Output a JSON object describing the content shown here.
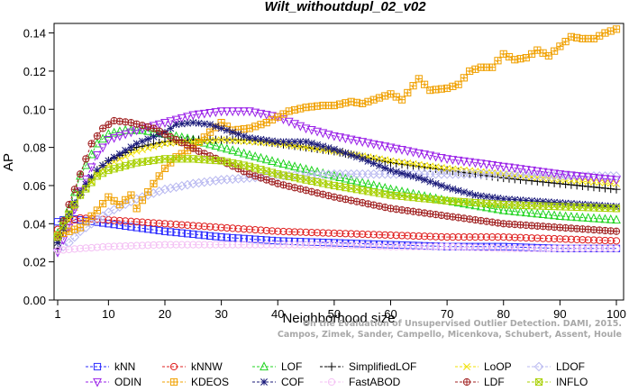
{
  "chart_data": {
    "type": "line",
    "title": "Wilt_withoutdupl_02_v02",
    "xlabel": "Neighborhood size",
    "ylabel": "AP",
    "xlim": [
      1,
      100
    ],
    "ylim": [
      0,
      0.145
    ],
    "xticks": [
      1,
      10,
      20,
      30,
      40,
      50,
      60,
      70,
      80,
      90,
      100
    ],
    "yticks": [
      0.0,
      0.02,
      0.04,
      0.06,
      0.08,
      0.1,
      0.12,
      0.14
    ],
    "ytick_labels": [
      "0.00",
      "0.02",
      "0.04",
      "0.06",
      "0.08",
      "0.10",
      "0.12",
      "0.14"
    ],
    "legend_position": "bottom",
    "grid": false,
    "series": [
      {
        "name": "kNN",
        "color": "#2a2aff",
        "marker": "square",
        "points": [
          [
            1,
            0.041
          ],
          [
            3,
            0.043
          ],
          [
            5,
            0.042
          ],
          [
            10,
            0.04
          ],
          [
            20,
            0.036
          ],
          [
            30,
            0.033
          ],
          [
            40,
            0.031
          ],
          [
            50,
            0.03
          ],
          [
            60,
            0.029
          ],
          [
            70,
            0.028
          ],
          [
            80,
            0.028
          ],
          [
            90,
            0.027
          ],
          [
            100,
            0.027
          ]
        ]
      },
      {
        "name": "kNNW",
        "color": "#e02020",
        "marker": "circle",
        "points": [
          [
            1,
            0.037
          ],
          [
            3,
            0.041
          ],
          [
            5,
            0.043
          ],
          [
            10,
            0.042
          ],
          [
            20,
            0.04
          ],
          [
            30,
            0.038
          ],
          [
            40,
            0.036
          ],
          [
            50,
            0.035
          ],
          [
            60,
            0.034
          ],
          [
            70,
            0.033
          ],
          [
            80,
            0.033
          ],
          [
            90,
            0.032
          ],
          [
            100,
            0.031
          ]
        ]
      },
      {
        "name": "LOF",
        "color": "#22d422",
        "marker": "triangle-up",
        "points": [
          [
            1,
            0.035
          ],
          [
            3,
            0.048
          ],
          [
            5,
            0.065
          ],
          [
            8,
            0.082
          ],
          [
            10,
            0.087
          ],
          [
            13,
            0.089
          ],
          [
            16,
            0.089
          ],
          [
            20,
            0.087
          ],
          [
            25,
            0.084
          ],
          [
            30,
            0.08
          ],
          [
            40,
            0.072
          ],
          [
            50,
            0.065
          ],
          [
            60,
            0.058
          ],
          [
            70,
            0.052
          ],
          [
            80,
            0.047
          ],
          [
            90,
            0.044
          ],
          [
            100,
            0.042
          ]
        ]
      },
      {
        "name": "SimplifiedLOF",
        "color": "#000000",
        "marker": "plus",
        "points": [
          [
            1,
            0.027
          ],
          [
            3,
            0.043
          ],
          [
            5,
            0.055
          ],
          [
            8,
            0.068
          ],
          [
            10,
            0.073
          ],
          [
            15,
            0.08
          ],
          [
            20,
            0.083
          ],
          [
            25,
            0.084
          ],
          [
            30,
            0.084
          ],
          [
            35,
            0.084
          ],
          [
            40,
            0.082
          ],
          [
            50,
            0.078
          ],
          [
            60,
            0.072
          ],
          [
            70,
            0.068
          ],
          [
            80,
            0.064
          ],
          [
            90,
            0.061
          ],
          [
            100,
            0.058
          ]
        ]
      },
      {
        "name": "LoOP",
        "color": "#f0e000",
        "marker": "x",
        "points": [
          [
            1,
            0.03
          ],
          [
            3,
            0.042
          ],
          [
            5,
            0.055
          ],
          [
            8,
            0.066
          ],
          [
            10,
            0.071
          ],
          [
            15,
            0.078
          ],
          [
            20,
            0.082
          ],
          [
            25,
            0.083
          ],
          [
            30,
            0.084
          ],
          [
            40,
            0.082
          ],
          [
            50,
            0.078
          ],
          [
            60,
            0.073
          ],
          [
            70,
            0.069
          ],
          [
            80,
            0.066
          ],
          [
            90,
            0.063
          ],
          [
            100,
            0.061
          ]
        ]
      },
      {
        "name": "LDOF",
        "color": "#b8b8f0",
        "marker": "diamond",
        "points": [
          [
            1,
            0.026
          ],
          [
            3,
            0.03
          ],
          [
            5,
            0.036
          ],
          [
            10,
            0.046
          ],
          [
            15,
            0.053
          ],
          [
            20,
            0.058
          ],
          [
            25,
            0.061
          ],
          [
            30,
            0.063
          ],
          [
            35,
            0.064
          ],
          [
            40,
            0.065
          ],
          [
            50,
            0.066
          ],
          [
            60,
            0.066
          ],
          [
            70,
            0.066
          ],
          [
            80,
            0.066
          ],
          [
            90,
            0.065
          ],
          [
            100,
            0.065
          ]
        ]
      },
      {
        "name": "ODIN",
        "color": "#9a20e8",
        "marker": "triangle-down",
        "points": [
          [
            1,
            0.025
          ],
          [
            3,
            0.038
          ],
          [
            5,
            0.057
          ],
          [
            8,
            0.076
          ],
          [
            10,
            0.084
          ],
          [
            15,
            0.089
          ],
          [
            20,
            0.093
          ],
          [
            25,
            0.097
          ],
          [
            30,
            0.099
          ],
          [
            35,
            0.099
          ],
          [
            40,
            0.096
          ],
          [
            45,
            0.09
          ],
          [
            50,
            0.086
          ],
          [
            60,
            0.08
          ],
          [
            70,
            0.074
          ],
          [
            80,
            0.07
          ],
          [
            90,
            0.066
          ],
          [
            100,
            0.063
          ]
        ]
      },
      {
        "name": "KDEOS",
        "color": "#f0a000",
        "marker": "square-cross",
        "points": [
          [
            1,
            0.034
          ],
          [
            3,
            0.036
          ],
          [
            5,
            0.038
          ],
          [
            8,
            0.047
          ],
          [
            10,
            0.054
          ],
          [
            12,
            0.05
          ],
          [
            14,
            0.055
          ],
          [
            15,
            0.048
          ],
          [
            18,
            0.061
          ],
          [
            20,
            0.069
          ],
          [
            22,
            0.075
          ],
          [
            25,
            0.08
          ],
          [
            28,
            0.088
          ],
          [
            30,
            0.093
          ],
          [
            32,
            0.089
          ],
          [
            35,
            0.09
          ],
          [
            38,
            0.093
          ],
          [
            40,
            0.096
          ],
          [
            42,
            0.099
          ],
          [
            45,
            0.101
          ],
          [
            48,
            0.102
          ],
          [
            50,
            0.102
          ],
          [
            53,
            0.104
          ],
          [
            55,
            0.103
          ],
          [
            58,
            0.106
          ],
          [
            60,
            0.108
          ],
          [
            62,
            0.105
          ],
          [
            65,
            0.116
          ],
          [
            67,
            0.11
          ],
          [
            70,
            0.111
          ],
          [
            72,
            0.113
          ],
          [
            74,
            0.12
          ],
          [
            76,
            0.122
          ],
          [
            78,
            0.122
          ],
          [
            80,
            0.129
          ],
          [
            82,
            0.126
          ],
          [
            84,
            0.127
          ],
          [
            86,
            0.131
          ],
          [
            88,
            0.128
          ],
          [
            90,
            0.133
          ],
          [
            92,
            0.138
          ],
          [
            94,
            0.137
          ],
          [
            96,
            0.137
          ],
          [
            98,
            0.14
          ],
          [
            100,
            0.142
          ]
        ]
      },
      {
        "name": "COF",
        "color": "#1a1a7a",
        "marker": "star",
        "points": [
          [
            1,
            0.03
          ],
          [
            3,
            0.045
          ],
          [
            5,
            0.057
          ],
          [
            8,
            0.068
          ],
          [
            10,
            0.073
          ],
          [
            15,
            0.082
          ],
          [
            20,
            0.088
          ],
          [
            22,
            0.092
          ],
          [
            25,
            0.093
          ],
          [
            28,
            0.092
          ],
          [
            30,
            0.09
          ],
          [
            35,
            0.085
          ],
          [
            40,
            0.083
          ],
          [
            45,
            0.083
          ],
          [
            50,
            0.079
          ],
          [
            55,
            0.074
          ],
          [
            60,
            0.068
          ],
          [
            65,
            0.064
          ],
          [
            70,
            0.059
          ],
          [
            75,
            0.055
          ],
          [
            80,
            0.053
          ],
          [
            85,
            0.052
          ],
          [
            90,
            0.051
          ],
          [
            95,
            0.05
          ],
          [
            100,
            0.049
          ]
        ]
      },
      {
        "name": "FastABOD",
        "color": "#f4c0f4",
        "marker": "circle",
        "points": [
          [
            1,
            0.026
          ],
          [
            5,
            0.027
          ],
          [
            10,
            0.028
          ],
          [
            20,
            0.029
          ],
          [
            30,
            0.029
          ],
          [
            40,
            0.029
          ],
          [
            50,
            0.029
          ],
          [
            60,
            0.028
          ],
          [
            70,
            0.028
          ],
          [
            80,
            0.027
          ],
          [
            90,
            0.027
          ],
          [
            100,
            0.027
          ]
        ]
      },
      {
        "name": "LDF",
        "color": "#a02020",
        "marker": "circle-cross",
        "points": [
          [
            1,
            0.033
          ],
          [
            3,
            0.05
          ],
          [
            5,
            0.066
          ],
          [
            7,
            0.082
          ],
          [
            9,
            0.09
          ],
          [
            11,
            0.094
          ],
          [
            14,
            0.093
          ],
          [
            18,
            0.09
          ],
          [
            22,
            0.084
          ],
          [
            26,
            0.078
          ],
          [
            30,
            0.073
          ],
          [
            35,
            0.066
          ],
          [
            40,
            0.061
          ],
          [
            50,
            0.054
          ],
          [
            60,
            0.048
          ],
          [
            70,
            0.044
          ],
          [
            80,
            0.04
          ],
          [
            90,
            0.038
          ],
          [
            100,
            0.036
          ]
        ]
      },
      {
        "name": "INFLO",
        "color": "#a8d000",
        "marker": "square-x",
        "points": [
          [
            1,
            0.033
          ],
          [
            3,
            0.045
          ],
          [
            5,
            0.055
          ],
          [
            8,
            0.065
          ],
          [
            10,
            0.068
          ],
          [
            15,
            0.072
          ],
          [
            20,
            0.074
          ],
          [
            25,
            0.074
          ],
          [
            30,
            0.073
          ],
          [
            35,
            0.07
          ],
          [
            40,
            0.066
          ],
          [
            50,
            0.06
          ],
          [
            60,
            0.055
          ],
          [
            70,
            0.052
          ],
          [
            80,
            0.05
          ],
          [
            90,
            0.049
          ],
          [
            100,
            0.048
          ]
        ]
      }
    ]
  },
  "legend_order": [
    "kNN",
    "kNNW",
    "LOF",
    "SimplifiedLOF",
    "LoOP",
    "LDOF",
    "ODIN",
    "KDEOS",
    "COF",
    "FastABOD",
    "LDF",
    "INFLO"
  ],
  "watermark": [
    "Campos, Zimek, Sander, Campello, Micenkova, Schubert, Assent, Houle",
    "On the Evaluation of Unsupervised Outlier Detection. DAMI, 2015."
  ]
}
